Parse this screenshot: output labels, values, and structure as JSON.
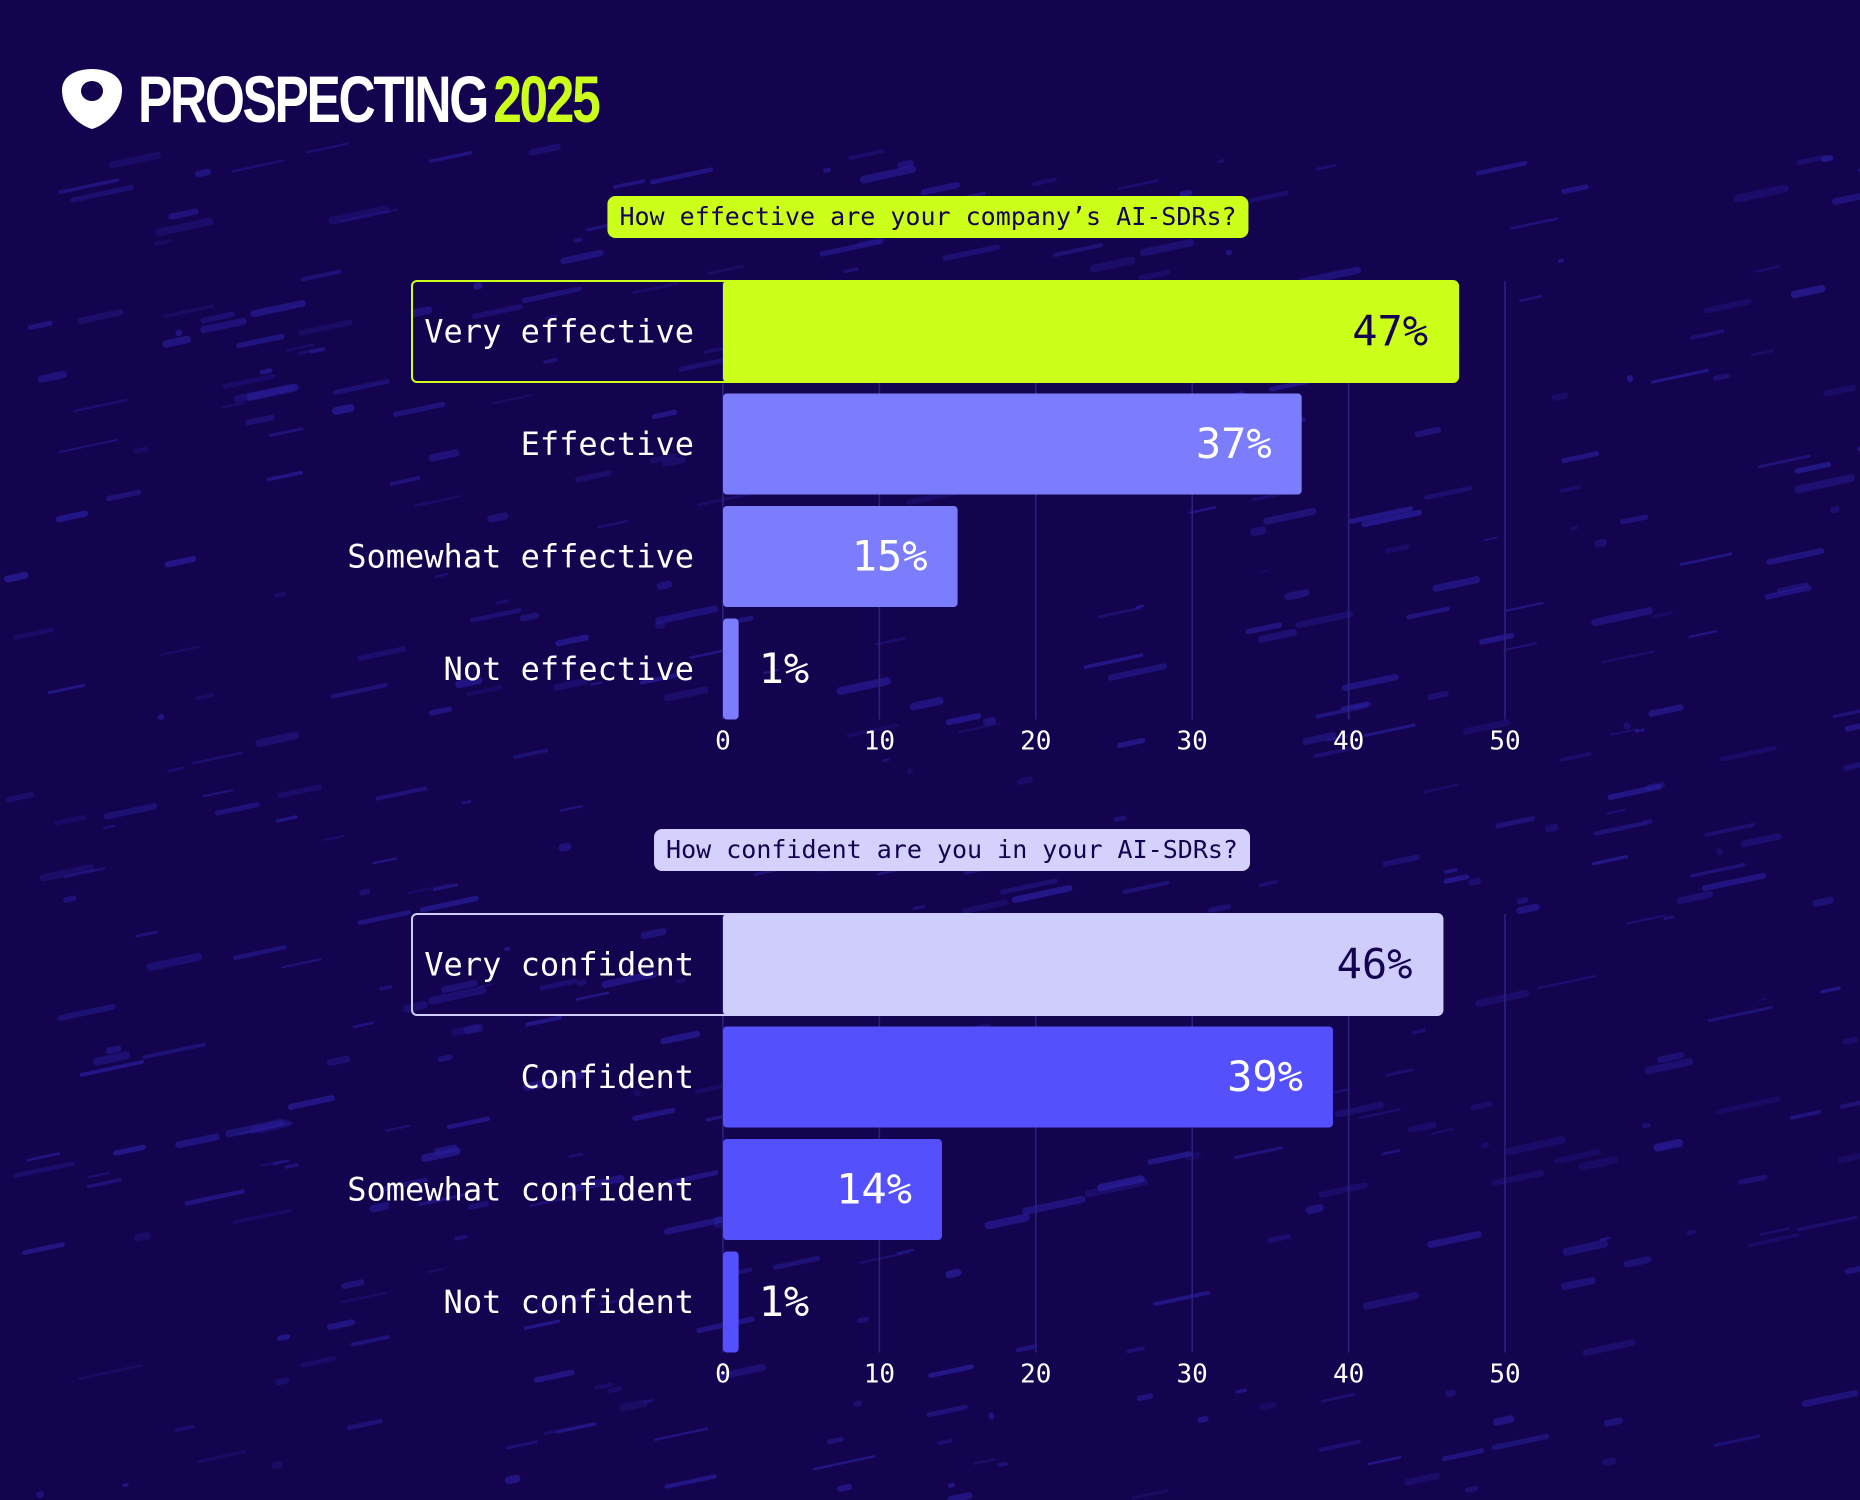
{
  "brand": {
    "name": "PROSPECTING",
    "year": "2025",
    "accent_color": "#ccff1a",
    "icon": "shield-icon"
  },
  "chart_data": [
    {
      "type": "bar",
      "orientation": "horizontal",
      "title": "How effective are your company’s AI-SDRs?",
      "categories": [
        "Very effective",
        "Effective",
        "Somewhat effective",
        "Not effective"
      ],
      "values": [
        47,
        37,
        15,
        1
      ],
      "value_labels": [
        "47%",
        "37%",
        "15%",
        "1%"
      ],
      "xlim": [
        0,
        50
      ],
      "xticks": [
        "0",
        "10",
        "20",
        "30",
        "40",
        "50"
      ],
      "grid": true,
      "colors": {
        "highlight": "#ccff1a",
        "bar": "#7b7dfc",
        "title_pill": "#ccff1a",
        "highlight_text": "#14044f",
        "bar_text": "#ffffff"
      }
    },
    {
      "type": "bar",
      "orientation": "horizontal",
      "title": "How confident are you in your AI-SDRs?",
      "categories": [
        "Very confident",
        "Confident",
        "Somewhat confident",
        "Not confident"
      ],
      "values": [
        46,
        39,
        14,
        1
      ],
      "value_labels": [
        "46%",
        "39%",
        "14%",
        "1%"
      ],
      "xlim": [
        0,
        50
      ],
      "xticks": [
        "0",
        "10",
        "20",
        "30",
        "40",
        "50"
      ],
      "grid": true,
      "colors": {
        "highlight": "#cfcdfc",
        "bar": "#5550fe",
        "title_pill": "#d4d1fc",
        "highlight_text": "#14044f",
        "bar_text": "#ffffff"
      }
    }
  ]
}
